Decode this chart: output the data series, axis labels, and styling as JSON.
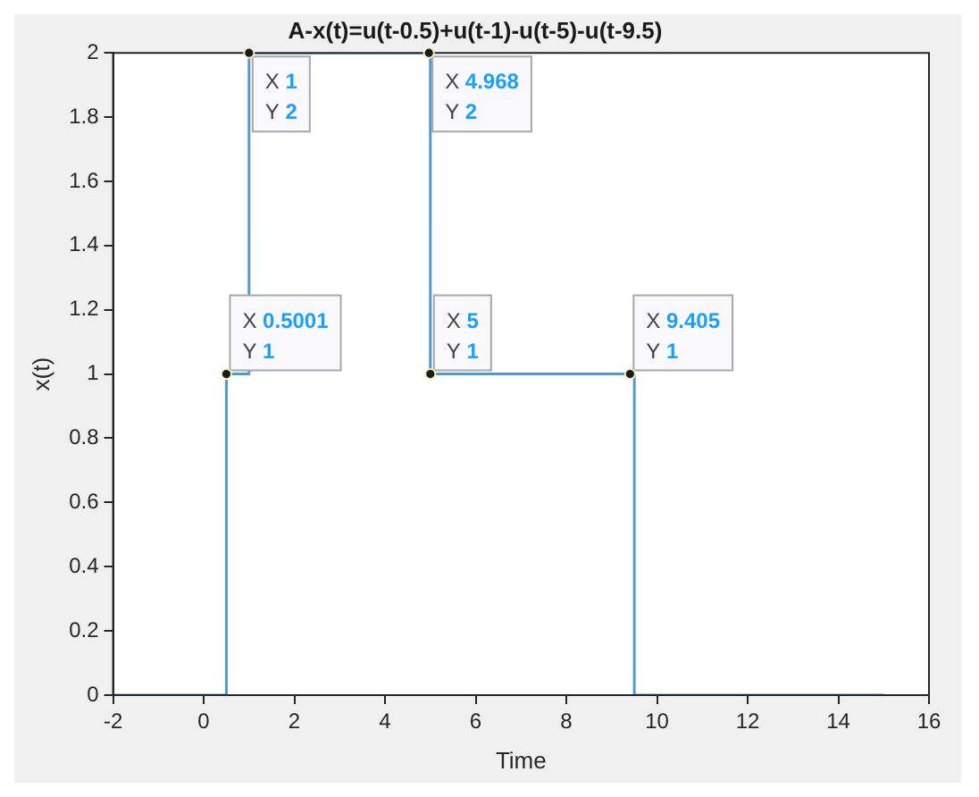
{
  "chart_data": {
    "type": "line",
    "title": "A-x(t)=u(t-0.5)+u(t-1)-u(t-5)-u(t-9.5)",
    "xlabel": "Time",
    "ylabel": "x(t)",
    "x": [
      -2,
      0.5,
      0.5,
      1,
      1,
      5,
      5,
      9.5,
      9.5,
      15
    ],
    "series": [
      {
        "color": "#4d9ad4",
        "values": [
          0,
          0,
          1,
          1,
          2,
          2,
          1,
          1,
          0,
          0
        ]
      }
    ],
    "xlim": [
      -2,
      16
    ],
    "xticks": [
      -2,
      0,
      2,
      4,
      6,
      8,
      10,
      12,
      14,
      16
    ],
    "ylim": [
      0,
      2
    ],
    "yticks": [
      0,
      0.2,
      0.4,
      0.6,
      0.8,
      1,
      1.2,
      1.4,
      1.6,
      1.8,
      2
    ],
    "grid": false,
    "legend": false,
    "marker": "none",
    "line_style": "solid",
    "annotations": [
      {
        "text": "X 1\nY 2",
        "x": 1,
        "y": 2
      },
      {
        "text": "X 4.968\nY 2",
        "x": 4.968,
        "y": 2
      },
      {
        "text": "X 0.5001\nY 1",
        "x": 0.5001,
        "y": 1
      },
      {
        "text": "X 5\nY 1",
        "x": 5,
        "y": 1
      },
      {
        "text": "X 9.405\nY 1",
        "x": 9.405,
        "y": 1
      }
    ]
  }
}
